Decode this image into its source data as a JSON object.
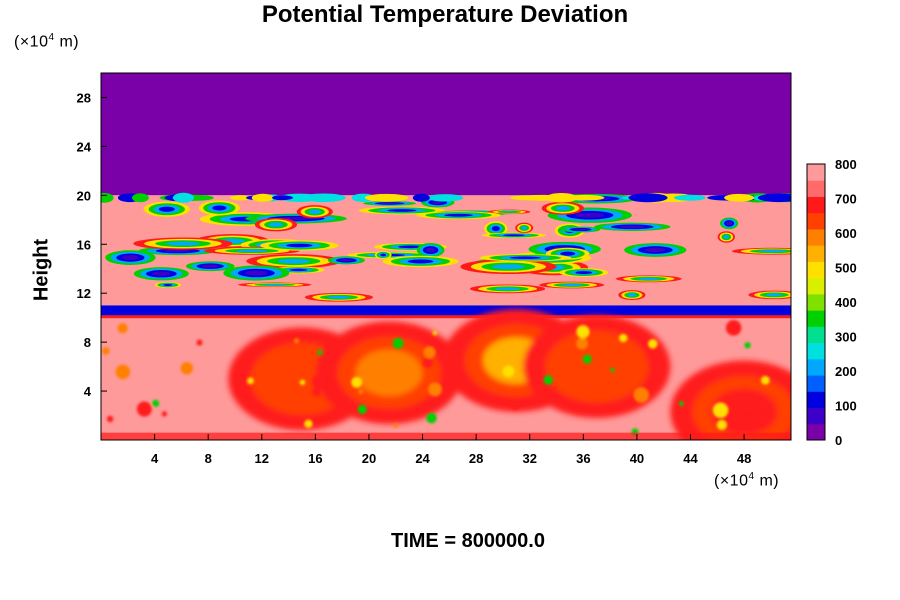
{
  "title": "Potential Temperature Deviation",
  "y_unit": "(×10⁴ m)",
  "x_unit": "(×10⁴ m)",
  "footer": "TIME = 800000.0",
  "chart_data": {
    "type": "heatmap",
    "title": "Potential Temperature Deviation",
    "xlabel": "",
    "ylabel": "Height",
    "x_unit": "(×10⁴ m)",
    "y_unit": "(×10⁴ m)",
    "xlim": [
      0,
      51.5
    ],
    "ylim": [
      0,
      30
    ],
    "x_ticks": [
      4,
      8,
      12,
      16,
      20,
      24,
      28,
      32,
      36,
      40,
      44,
      48
    ],
    "y_ticks": [
      4,
      8,
      12,
      16,
      20,
      24,
      28
    ],
    "colorbar": {
      "range": [
        0,
        800
      ],
      "ticks": [
        0,
        100,
        200,
        300,
        400,
        500,
        600,
        700,
        800
      ],
      "colors": [
        "#7a00a8",
        "#3c00c8",
        "#0000e0",
        "#0060ff",
        "#00a8ff",
        "#00e0e0",
        "#00e090",
        "#00d000",
        "#80e000",
        "#d8f000",
        "#ffe000",
        "#ffb000",
        "#ff8000",
        "#ff4000",
        "#ff1a1a",
        "#ff6a6a",
        "#ff9a9a"
      ]
    },
    "regions": [
      {
        "name": "upper layer",
        "y_range": [
          20,
          30
        ],
        "value": 0
      },
      {
        "name": "turbulent band",
        "y_range": [
          11,
          20
        ],
        "value": 800
      },
      {
        "name": "thin layer",
        "y_range": [
          10,
          11
        ],
        "value": 100
      },
      {
        "name": "lower eddies",
        "y_range": [
          0,
          10
        ],
        "value": 800
      }
    ],
    "vortices": [
      {
        "x": 15,
        "y": 5,
        "value": 640
      },
      {
        "x": 21.5,
        "y": 5.5,
        "value": 600
      },
      {
        "x": 31,
        "y": 6.5,
        "value": 560
      },
      {
        "x": 37,
        "y": 6,
        "value": 660
      },
      {
        "x": 48,
        "y": 2.3,
        "value": 700
      }
    ],
    "footer": "TIME = 800000.0"
  }
}
